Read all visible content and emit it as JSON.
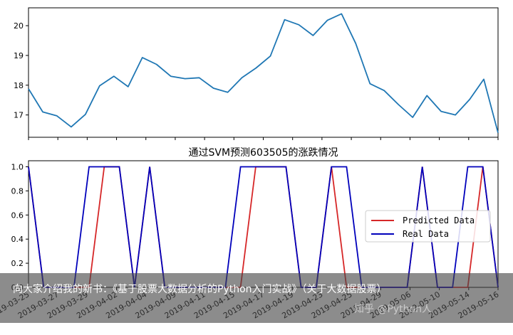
{
  "chart_data": [
    {
      "type": "line",
      "title": "",
      "xlabel": "",
      "ylabel": "",
      "ylim": [
        16.25,
        20.6
      ],
      "yticks": [
        17,
        18,
        19,
        20
      ],
      "grid": false,
      "series": [
        {
          "color": "#1f77b4",
          "values": [
            17.88,
            17.1,
            16.97,
            16.6,
            17.02,
            17.98,
            18.3,
            17.95,
            18.93,
            18.7,
            18.3,
            18.22,
            18.25,
            17.9,
            17.76,
            18.25,
            18.58,
            18.98,
            20.2,
            20.03,
            19.67,
            20.18,
            20.4,
            19.4,
            18.05,
            17.82,
            17.35,
            16.92,
            17.65,
            17.12,
            17.0,
            17.52,
            18.2,
            16.4
          ]
        }
      ]
    },
    {
      "type": "line",
      "title": "通过SVM预测603505的涨跌情况",
      "xlabel": "",
      "ylabel": "",
      "ylim": [
        0,
        1.05
      ],
      "yticks": [
        "0.0",
        "0.2",
        "0.4",
        "0.6",
        "0.8",
        "1.0"
      ],
      "xticks": [
        "2019-03-25",
        "2019-03-27",
        "2019-03-29",
        "2019-04-02",
        "2019-04-04",
        "2019-04-09",
        "2019-04-11",
        "2019-04-15",
        "2019-04-17",
        "2019-04-19",
        "2019-04-23",
        "2019-04-25",
        "2019-04-29",
        "2019-05-06",
        "2019-05-10",
        "2019-05-14",
        "2019-05-16"
      ],
      "grid": false,
      "legend": "right",
      "series": [
        {
          "name": "Predicted Data",
          "color": "#d62728",
          "values": [
            1,
            0,
            0,
            0,
            0,
            1,
            1,
            0,
            1,
            0,
            0,
            0,
            0,
            0,
            0,
            1,
            1,
            1,
            0,
            0,
            1,
            0,
            0,
            0,
            0,
            0,
            1,
            0,
            0,
            0,
            1,
            0
          ]
        },
        {
          "name": "Real Data",
          "color": "#0000bb",
          "values": [
            1,
            0,
            0,
            0,
            1,
            1,
            1,
            0,
            1,
            0,
            0,
            0,
            0,
            0,
            1,
            1,
            1,
            1,
            0,
            0,
            1,
            1,
            0,
            0,
            0,
            0,
            1,
            0,
            0,
            1,
            1,
            0
          ]
        }
      ]
    }
  ],
  "caption": "向大家介绍我的新书：《基于股票大数据分析的Python入门实战》（关于大数据股票）",
  "watermark": "知乎 @Python人"
}
